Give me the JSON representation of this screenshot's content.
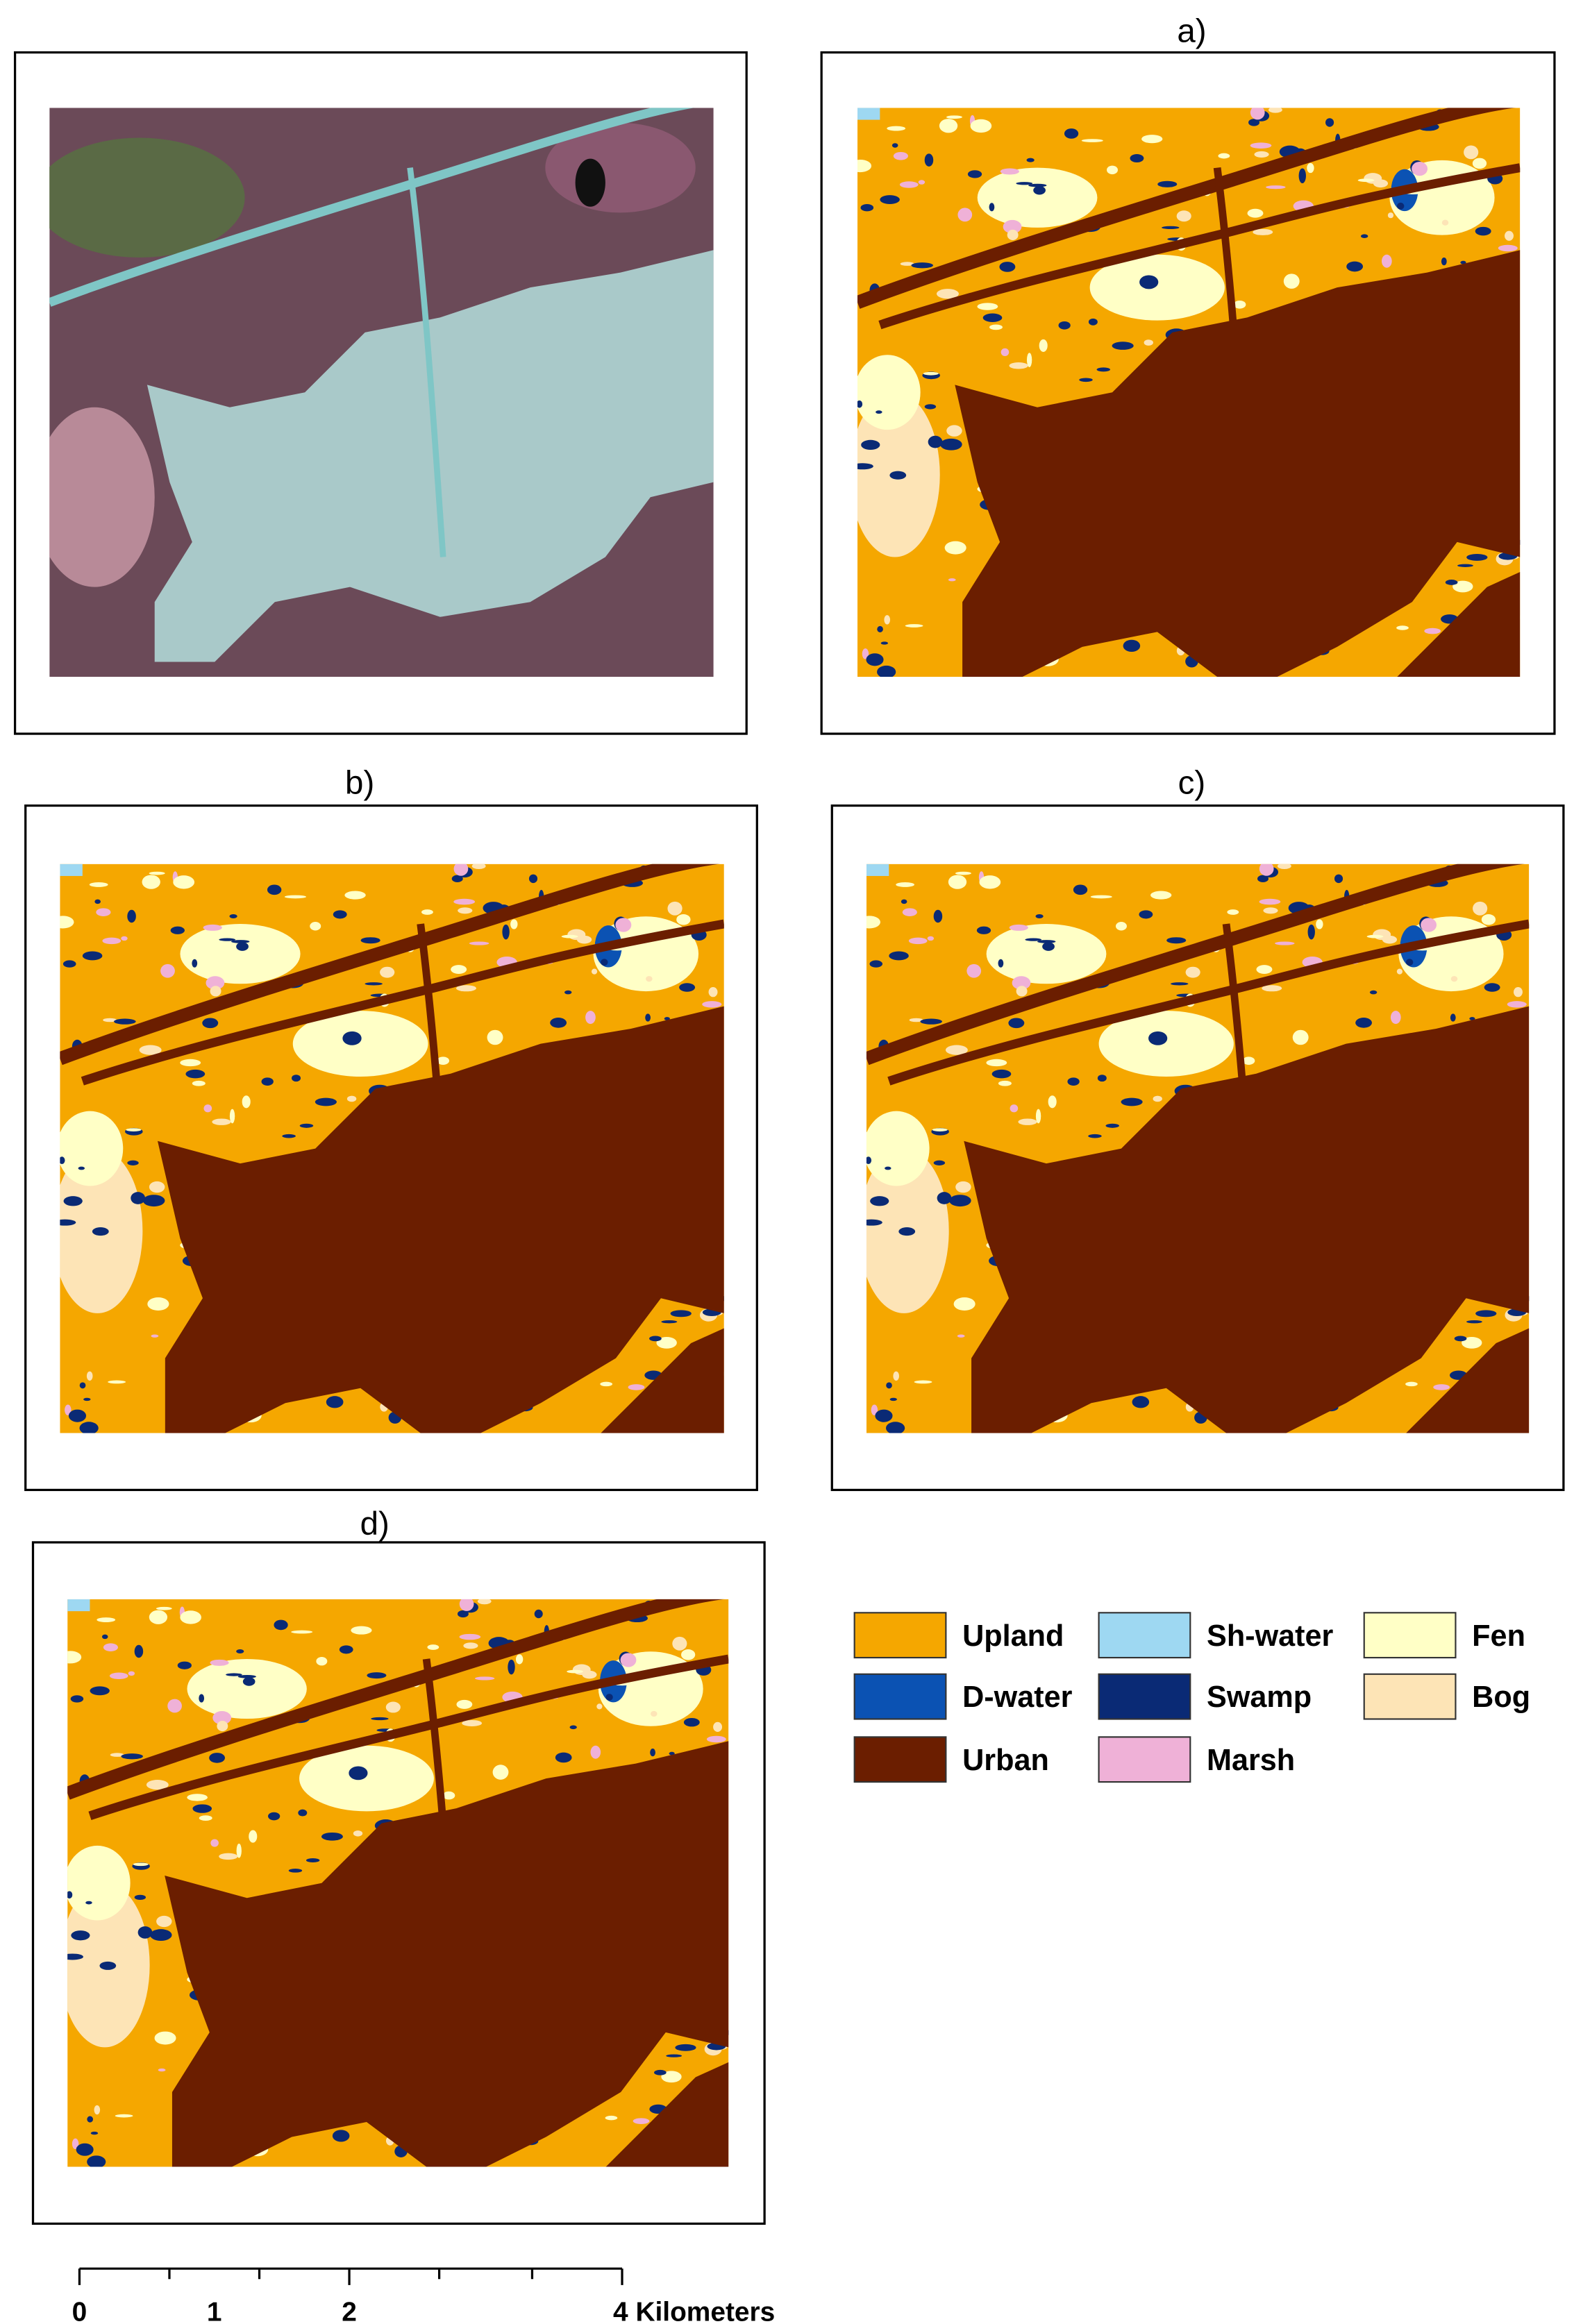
{
  "panels": {
    "labels": [
      "a)",
      "b)",
      "c)",
      "d)"
    ]
  },
  "legend": {
    "items": [
      {
        "label": "Upland",
        "color": "#f5a700"
      },
      {
        "label": "D-water",
        "color": "#0b52b3"
      },
      {
        "label": "Urban",
        "color": "#6b1e00"
      },
      {
        "label": "Sh-water",
        "color": "#9ed8f2"
      },
      {
        "label": "Swamp",
        "color": "#0a2a75"
      },
      {
        "label": "Marsh",
        "color": "#efb1d7"
      },
      {
        "label": "Fen",
        "color": "#ffffc6"
      },
      {
        "label": "Bog",
        "color": "#fde4b6"
      }
    ]
  },
  "scale_bar": {
    "labels": [
      "0",
      "1",
      "2",
      "4 Kilometers"
    ]
  }
}
